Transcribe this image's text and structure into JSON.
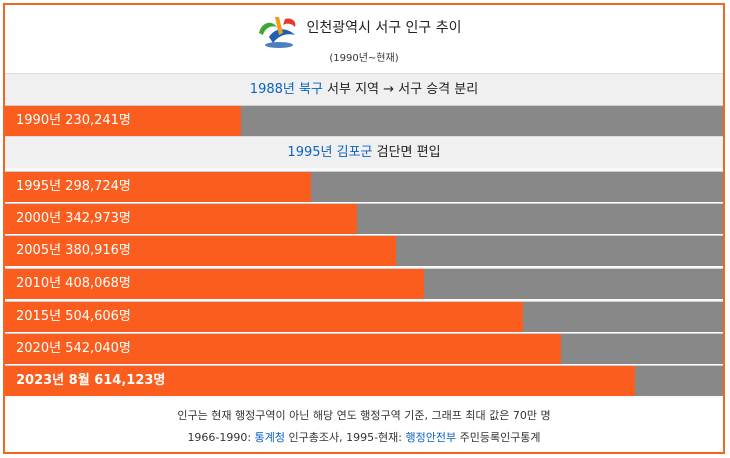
{
  "header": {
    "title": "인천광역시 서구 인구 추이",
    "subtitle": "(1990년~현재)"
  },
  "notes": [
    {
      "link": "1988년",
      "sep": " ",
      "link2": "북구",
      "rest": " 서부 지역 → 서구 승격 분리"
    },
    {
      "link": "1995년",
      "sep": " ",
      "link2": "김포군",
      "rest": " 검단면 편입"
    }
  ],
  "chart_data": {
    "type": "bar",
    "orientation": "horizontal",
    "max": 700000,
    "categories": [
      "1990년",
      "1995년",
      "2000년",
      "2005년",
      "2010년",
      "2015년",
      "2020년",
      "2023년 8월"
    ],
    "labels": [
      "1990년 230,241명",
      "1995년 298,724명",
      "2000년 342,973명",
      "2005년 380,916명",
      "2010년 408,068명",
      "2015년 504,606명",
      "2020년 542,040명",
      "2023년 8월 614,123명"
    ],
    "values": [
      230241,
      298724,
      342973,
      380916,
      408068,
      504606,
      542040,
      614123
    ],
    "colors": {
      "fill": "#fa5d1e",
      "track": "#888888"
    }
  },
  "footer": {
    "line1": "인구는 현재 행정구역이 아닌 해당 연도 행정구역 기준, 그래프 최대 값은 70만 명",
    "line2_a": "1966-1990: ",
    "line2_link1": "통계청",
    "line2_b": " 인구총조사, 1995-현재: ",
    "line2_link2": "행정안전부",
    "line2_c": " 주민등록인구통계"
  }
}
